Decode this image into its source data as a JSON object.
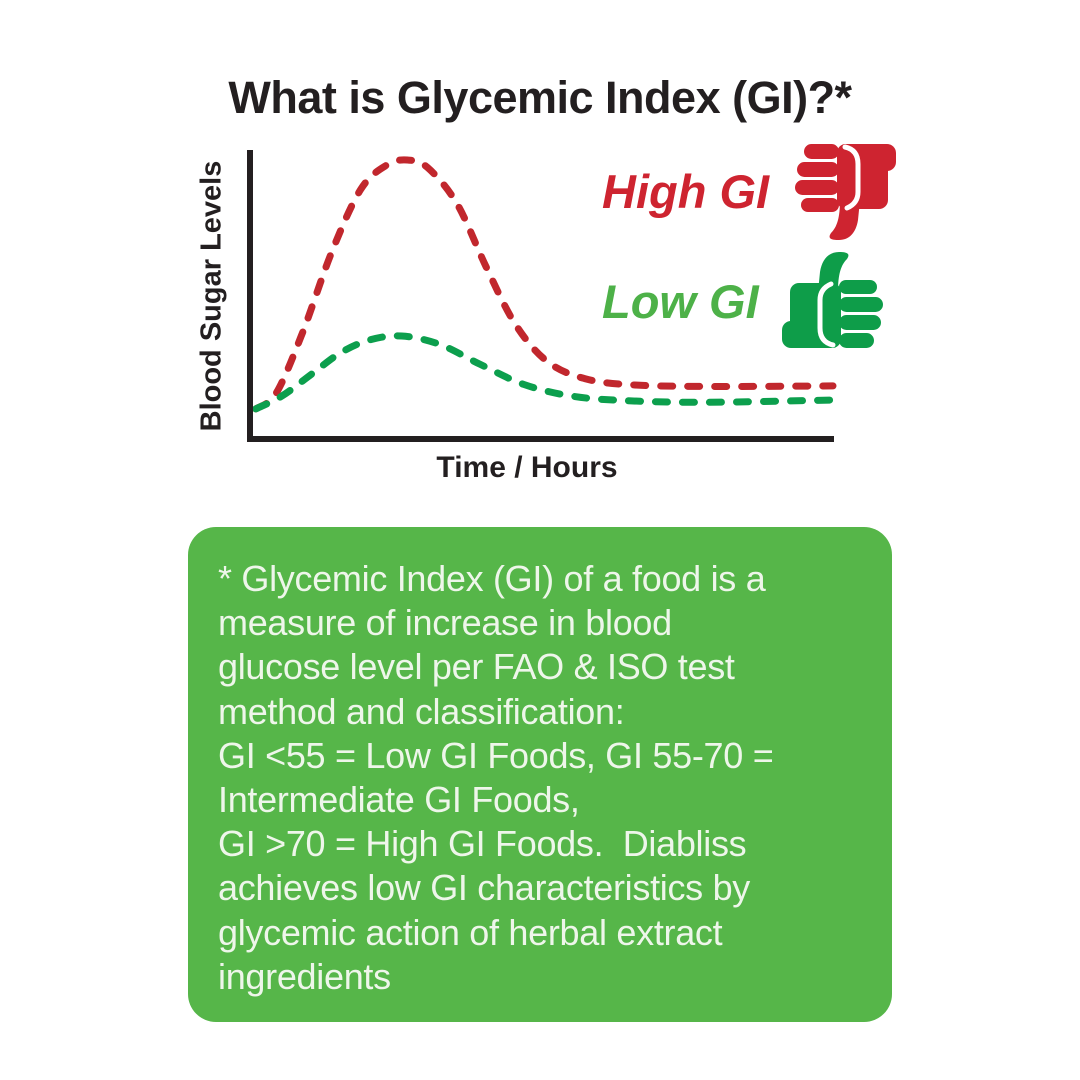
{
  "title": "What is Glycemic Index (GI)?*",
  "chart_data": {
    "type": "line",
    "title": "What is Glycemic Index (GI)?*",
    "xlabel": "Time / Hours",
    "ylabel": "Blood Sugar Levels",
    "grid": false,
    "axis_tick_labels": "none (qualitative sketch with unlabeled axes)",
    "x_range_normalized": [
      0,
      1
    ],
    "y_range_normalized": [
      0,
      1
    ],
    "legend_position": "inside-right",
    "series": [
      {
        "name": "High GI",
        "color": "#c1272d",
        "line_style": "dashed",
        "icon": "thumbs-down-icon",
        "points_norm": [
          [
            0.01,
            0.105
          ],
          [
            0.045,
            0.16
          ],
          [
            0.09,
            0.37
          ],
          [
            0.14,
            0.65
          ],
          [
            0.19,
            0.87
          ],
          [
            0.235,
            0.955
          ],
          [
            0.27,
            0.972
          ],
          [
            0.305,
            0.945
          ],
          [
            0.355,
            0.82
          ],
          [
            0.405,
            0.6
          ],
          [
            0.455,
            0.4
          ],
          [
            0.51,
            0.27
          ],
          [
            0.575,
            0.21
          ],
          [
            0.66,
            0.188
          ],
          [
            0.8,
            0.183
          ],
          [
            1.0,
            0.185
          ]
        ]
      },
      {
        "name": "Low GI",
        "color": "#0c9f4d",
        "line_style": "dashed",
        "icon": "thumbs-up-icon",
        "points_norm": [
          [
            0.01,
            0.105
          ],
          [
            0.055,
            0.15
          ],
          [
            0.105,
            0.225
          ],
          [
            0.155,
            0.3
          ],
          [
            0.205,
            0.345
          ],
          [
            0.26,
            0.359
          ],
          [
            0.325,
            0.33
          ],
          [
            0.395,
            0.26
          ],
          [
            0.47,
            0.19
          ],
          [
            0.55,
            0.15
          ],
          [
            0.64,
            0.134
          ],
          [
            0.78,
            0.128
          ],
          [
            1.0,
            0.136
          ]
        ]
      }
    ]
  },
  "legend": {
    "high": {
      "label": "High GI",
      "color": "#ce2430",
      "icon": "thumbs-down"
    },
    "low": {
      "label": "Low GI",
      "color": "#4db148",
      "icon": "thumbs-up"
    }
  },
  "icons": {
    "thumb_red": "#ce2430",
    "thumb_green": "#0e9d49"
  },
  "footnote": {
    "bg_color": "#56b649",
    "text_color": "#eef6ea",
    "lines": [
      "* Glycemic Index (GI) of a food is a",
      "measure of increase in blood",
      "glucose level per FAO & ISO test",
      "method and classification:",
      "GI <55 = Low GI Foods, GI 55-70 =",
      "Intermediate GI Foods,",
      "GI >70 = High GI Foods.  Diabliss",
      "achieves low GI characteristics by",
      "glycemic action of herbal extract",
      "ingredients"
    ]
  },
  "colors": {
    "background": "#ffffff",
    "ink": "#231f20",
    "high_red": "#c1272d",
    "low_green": "#0c9f4d"
  }
}
